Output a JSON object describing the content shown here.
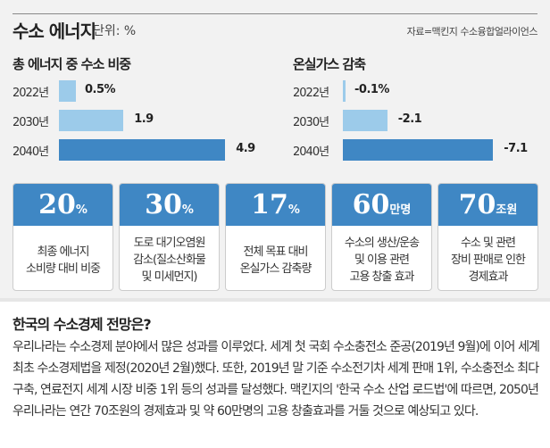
{
  "header": {
    "title": "수소 에너지",
    "unit": "단위: %",
    "source": "자료=맥킨지 수소융합얼라이언스"
  },
  "chart_data": [
    {
      "type": "bar",
      "orientation": "horizontal",
      "title": "총 에너지 중 수소 비중",
      "categories": [
        "2022년",
        "2030년",
        "2040년"
      ],
      "values": [
        0.5,
        1.9,
        4.9
      ],
      "labels": [
        "0.5%",
        "1.9",
        "4.9"
      ],
      "colors": [
        "#9ccbea",
        "#9ccbea",
        "#3f87c4"
      ]
    },
    {
      "type": "bar",
      "orientation": "horizontal",
      "title": "온실가스 감축",
      "categories": [
        "2022년",
        "2030년",
        "2040년"
      ],
      "values": [
        -0.1,
        -2.1,
        -7.1
      ],
      "labels": [
        "-0.1%",
        "-2.1",
        "-7.1"
      ],
      "colors": [
        "#9ccbea",
        "#9ccbea",
        "#3f87c4"
      ]
    }
  ],
  "cards": [
    {
      "num": "20",
      "unit": "%",
      "lines": [
        "최종 에너지",
        "소비량 대비 비중"
      ]
    },
    {
      "num": "30",
      "unit": "%",
      "lines": [
        "도로 대기오염원",
        "감소(질소산화물",
        "및 미세먼지)"
      ]
    },
    {
      "num": "17",
      "unit": "%",
      "lines": [
        "전체 목표 대비",
        "온실가스 감축량"
      ]
    },
    {
      "num": "60",
      "unit": "만명",
      "lines": [
        "수소의 생산/운송",
        "및 이용 관련",
        "고용 창출 효과"
      ]
    },
    {
      "num": "70",
      "unit": "조원",
      "lines": [
        "수소 및 관련",
        "장비 판매로 인한",
        "경제효과"
      ]
    }
  ],
  "article": {
    "title": "한국의 수소경제 전망은?",
    "body": "우리나라는 수소경제 분야에서 많은 성과를 이루었다. 세계 첫 국회 수소충전소 준공(2019년 9월)에 이어 세계 최초 수소경제법을 제정(2020년 2월)했다. 또한, 2019년 말 기준 수소전기차 세계 판매 1위, 수소충전소 최다 구축, 연료전지 세계 시장 비중 1위 등의 성과를 달성했다. 맥킨지의 '한국 수소 산업 로드법'에 따르면, 2050년 우리나라는 연간 70조원의 경제효과 및 약 60만명의 고용 창출효과를 거둘 것으로 예상되고 있다."
  },
  "colors": {
    "accent": "#3f87c4",
    "light": "#9ccbea"
  }
}
